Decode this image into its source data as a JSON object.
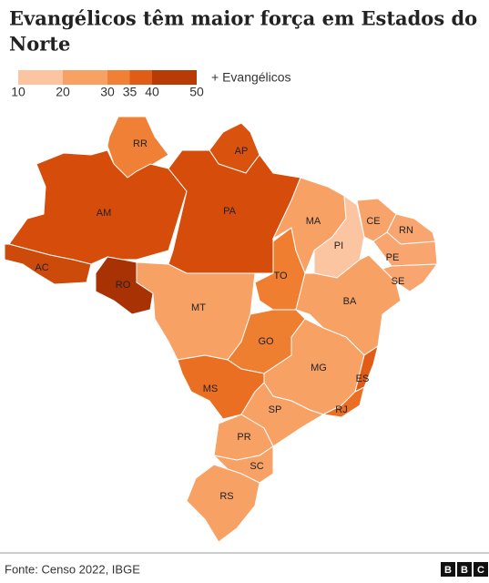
{
  "title": [
    "Evangélicos têm maior força em Estados do",
    "Norte"
  ],
  "legend": {
    "label": "+ Evangélicos",
    "ticks": [
      10,
      20,
      30,
      35,
      40,
      50
    ],
    "colors": [
      "#fac5a0",
      "#f7a165",
      "#ef8035",
      "#e05c17",
      "#b83b05"
    ]
  },
  "states": [
    {
      "label": "RR",
      "color": "#ef8035"
    },
    {
      "label": "AP",
      "color": "#d9520e"
    },
    {
      "label": "AM",
      "color": "#d64d0b"
    },
    {
      "label": "PA",
      "color": "#d64d0b"
    },
    {
      "label": "AC",
      "color": "#cc4a0a"
    },
    {
      "label": "RO",
      "color": "#a83203"
    },
    {
      "label": "MT",
      "color": "#f7a165"
    },
    {
      "label": "TO",
      "color": "#f07e30"
    },
    {
      "label": "MA",
      "color": "#f7a165"
    },
    {
      "label": "PI",
      "color": "#fac5a0"
    },
    {
      "label": "CE",
      "color": "#f8a36a"
    },
    {
      "label": "RN",
      "color": "#f8a570"
    },
    {
      "label": "PE",
      "color": "#f8a570"
    },
    {
      "label": "SE",
      "color": "#f8a570"
    },
    {
      "label": "BA",
      "color": "#f7a165"
    },
    {
      "label": "GO",
      "color": "#ef7f30"
    },
    {
      "label": "MG",
      "color": "#f7a165"
    },
    {
      "label": "ES",
      "color": "#e05c17"
    },
    {
      "label": "MS",
      "color": "#ea6f22"
    },
    {
      "label": "SP",
      "color": "#f7a165"
    },
    {
      "label": "RJ",
      "color": "#ea6f22"
    },
    {
      "label": "PR",
      "color": "#f7a165"
    },
    {
      "label": "SC",
      "color": "#f7a165"
    },
    {
      "label": "RS",
      "color": "#f7a165"
    }
  ],
  "source": "Fonte: Censo 2022, IBGE",
  "logo": [
    "B",
    "B",
    "C"
  ]
}
